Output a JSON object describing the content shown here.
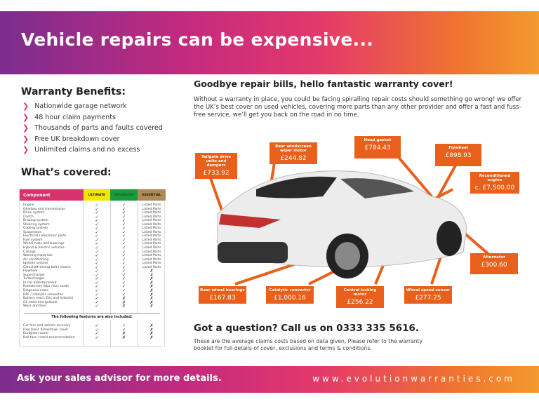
{
  "header": {
    "title": "Vehicle repairs can be expensive..."
  },
  "benefits": {
    "title": "Warranty Benefits:",
    "items": [
      "Nationwide garage network",
      "48 hour claim payments",
      "Thousands of parts and faults covered",
      "Free UK breakdown cover",
      "Unlimited claims and no excess"
    ]
  },
  "covered": {
    "title": "What’s covered:",
    "headers": [
      "Component",
      "ULTIMATE",
      "ADVANCED",
      "ESSENTIAL"
    ],
    "colors": {
      "component": "#d6336c",
      "ultimate": "#f5e400",
      "advanced": "#1a9a3a",
      "essential": "#b08a55"
    },
    "rows": [
      [
        "Engine",
        "✓",
        "✓",
        "Listed Parts"
      ],
      [
        "Gearbox and transmission",
        "✓",
        "✓",
        "Listed Parts"
      ],
      [
        "Drive system",
        "✓",
        "✓",
        "Listed Parts"
      ],
      [
        "Clutch",
        "✓",
        "✓",
        "Listed Parts"
      ],
      [
        "Braking system",
        "✓",
        "✓",
        "Listed Parts"
      ],
      [
        "Steering system",
        "✓",
        "✓",
        "Listed Parts"
      ],
      [
        "Cooling system",
        "✓",
        "✓",
        "Listed Parts"
      ],
      [
        "Suspension",
        "✓",
        "✓",
        "Listed Parts"
      ],
      [
        "Electrical / electronic parts",
        "✓",
        "✓",
        "Listed Parts"
      ],
      [
        "Fuel system",
        "✓",
        "✓",
        "Listed Parts"
      ],
      [
        "Wheel hubs and bearings",
        "✓",
        "✓",
        "Listed Parts"
      ],
      [
        "Hybrid & electric vehicles",
        "✓",
        "✓",
        "Listed Parts"
      ],
      [
        "Casings",
        "✓",
        "✓",
        "Listed Parts"
      ],
      [
        "Working materials",
        "✓",
        "✓",
        "Listed Parts"
      ],
      [
        "Air conditioning",
        "✓",
        "✓",
        "Listed Parts"
      ],
      [
        "Ignition system",
        "✓",
        "✓",
        "Listed Parts"
      ],
      [
        "Camshaft timing belt / chains",
        "✓",
        "✓",
        "Listed Parts"
      ],
      [
        "Flywheel",
        "✓",
        "✓",
        "✗"
      ],
      [
        "Supercharger",
        "✓",
        "✓",
        "✗"
      ],
      [
        "Turbocharger",
        "✓",
        "✓",
        "✗"
      ],
      [
        "In-car entertainment",
        "✓",
        "✓",
        "✗"
      ],
      [
        "Remote key fobs / key cards",
        "✓",
        "✓",
        "✗"
      ],
      [
        "Diagnosis costs",
        "✓",
        "✓",
        "✗"
      ],
      [
        "DPF / catalytic converter",
        "✓",
        "✓",
        "✗"
      ],
      [
        "Battery (excl. EVs and hybrids)",
        "✓",
        "✗",
        "✗"
      ],
      [
        "Oil seals and gaskets",
        "✓",
        "✗",
        "✗"
      ],
      [
        "Wear and tear",
        "✓",
        "✗",
        "✗"
      ]
    ],
    "features_title": "The following features are also included:",
    "features": [
      [
        "Car hire and vehicle recovery",
        "✓",
        "✓",
        "✗"
      ],
      [
        "Free basic breakdown cover",
        "✓",
        "✓",
        "✗"
      ],
      [
        "European cover",
        "✓",
        "✗",
        "✗"
      ],
      [
        "Rail fare / hotel accommodation",
        "✓",
        "✗",
        "✗"
      ]
    ]
  },
  "main": {
    "heading": "Goodbye repair bills, hello fantastic warranty cover!",
    "paragraph": "Without a warranty in place, you could be facing spiralling repair costs should something go wrong! we offer the UK’s best cover on used vehicles, covering more parts than any other provider and offer a fast and fuss-free service, we’ll get you back on the road in no time."
  },
  "callouts": [
    {
      "label": "Tailgate drive units and dampers",
      "price": "£733.92"
    },
    {
      "label": "Rear windscreen wiper motor",
      "price": "£244.82"
    },
    {
      "label": "Head gasket",
      "price": "£784.43"
    },
    {
      "label": "Flywheel",
      "price": "£898.93"
    },
    {
      "label": "Reconditioned engine",
      "price": "c. £7,500.00"
    },
    {
      "label": "Alternator",
      "price": "£300.60"
    },
    {
      "label": "Rear wheel bearings",
      "price": "£167.83"
    },
    {
      "label": "Catalytic converter",
      "price": "£1,000.16"
    },
    {
      "label": "Central locking motor",
      "price": "£256.22"
    },
    {
      "label": "Wheel speed sensor",
      "price": "£277.25"
    }
  ],
  "contact": {
    "heading": "Got a question? Call us on 0333 335 5616.",
    "note": "These are the average claims costs based on data given, Please refer to the warranty booklet for full details of cover, exclusions and terms & conditions."
  },
  "footer": {
    "left": "Ask your sales advisor for more details.",
    "right": "www.evolutionwarranties.com"
  },
  "accent": "#e8601c"
}
